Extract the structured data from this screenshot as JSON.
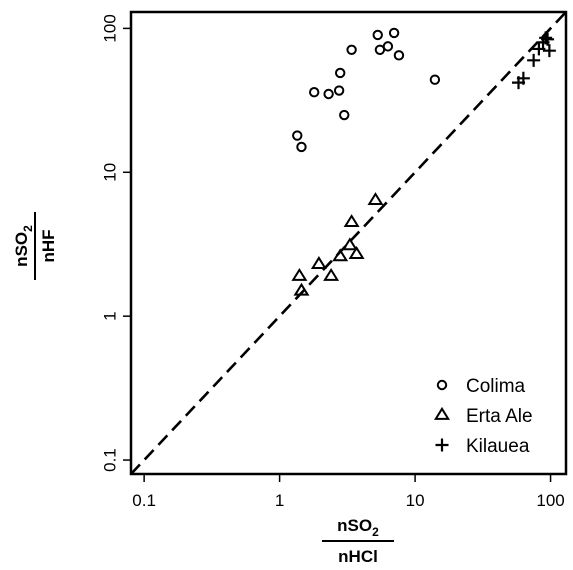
{
  "chart_data": {
    "type": "scatter",
    "xscale": "log",
    "yscale": "log",
    "xlim": [
      0.08,
      130
    ],
    "ylim": [
      0.08,
      130
    ],
    "x_ticks": [
      {
        "value": 0.1,
        "label": "0.1"
      },
      {
        "value": 1,
        "label": "1"
      },
      {
        "value": 10,
        "label": "10"
      },
      {
        "value": 100,
        "label": "100"
      }
    ],
    "y_ticks": [
      {
        "value": 0.1,
        "label": "0.1"
      },
      {
        "value": 1,
        "label": "1"
      },
      {
        "value": 10,
        "label": "10"
      },
      {
        "value": 100,
        "label": "100"
      }
    ],
    "xlabel": {
      "numerator_base": "nSO",
      "numerator_sub": "2",
      "denominator": "nHCl"
    },
    "ylabel": {
      "numerator_base": "nSO",
      "numerator_sub": "2",
      "denominator": "nHF"
    },
    "reference_line": {
      "style": "dashed",
      "points": [
        [
          0.08,
          0.08
        ],
        [
          130,
          130
        ]
      ]
    },
    "legend": {
      "placement": "bottom-right"
    },
    "grid": false,
    "series": [
      {
        "name": "Colima",
        "marker": "circle",
        "points": [
          [
            1.35,
            18
          ],
          [
            1.45,
            15
          ],
          [
            1.8,
            36
          ],
          [
            2.3,
            35
          ],
          [
            2.75,
            37
          ],
          [
            2.8,
            49
          ],
          [
            3.0,
            25
          ],
          [
            3.4,
            71
          ],
          [
            5.3,
            90
          ],
          [
            5.5,
            71
          ],
          [
            6.3,
            75
          ],
          [
            7.0,
            93
          ],
          [
            7.6,
            65
          ],
          [
            14,
            44
          ]
        ]
      },
      {
        "name": "Erta Ale",
        "marker": "triangle",
        "points": [
          [
            1.4,
            1.9
          ],
          [
            1.45,
            1.5
          ],
          [
            1.95,
            2.3
          ],
          [
            2.4,
            1.9
          ],
          [
            2.8,
            2.6
          ],
          [
            3.3,
            3.1
          ],
          [
            3.4,
            4.5
          ],
          [
            3.7,
            2.7
          ],
          [
            5.1,
            6.4
          ]
        ]
      },
      {
        "name": "Kilauea",
        "marker": "plus",
        "points": [
          [
            58,
            42
          ],
          [
            63,
            45
          ],
          [
            75,
            60
          ],
          [
            82,
            72
          ],
          [
            88,
            80
          ],
          [
            92,
            86
          ],
          [
            95,
            84
          ],
          [
            98,
            70
          ]
        ]
      }
    ]
  }
}
